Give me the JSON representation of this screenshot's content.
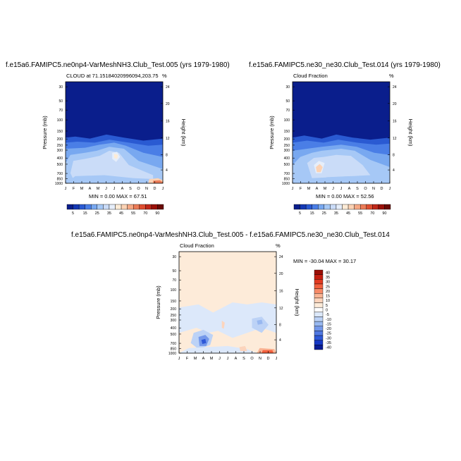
{
  "chart_data": [
    {
      "type": "heatmap",
      "title": "f.e15a6.FAMIPC5.ne0np4-VarMeshNH3.Club_Test.005 (yrs 1979-1980)",
      "left_label": "CLOUD at 71.15184020996094,203.75",
      "right_label": "%",
      "ylabel": "Pressure (mb)",
      "ylabel_right": "Height (km)",
      "x_ticks": [
        "J",
        "F",
        "M",
        "A",
        "M",
        "J",
        "J",
        "A",
        "S",
        "O",
        "N",
        "D",
        "J"
      ],
      "y_ticks": [
        "30",
        "50",
        "70",
        "100",
        "150",
        "200",
        "250",
        "300",
        "400",
        "500",
        "700",
        "850",
        "1000"
      ],
      "y_right_ticks": [
        "24",
        "20",
        "16",
        "12",
        "8",
        "4"
      ],
      "minmax": "MIN =   0.00 MAX =   67.51",
      "colorbar_labels": [
        "5",
        "15",
        "25",
        "35",
        "45",
        "55",
        "70",
        "90"
      ],
      "levels": [
        5,
        10,
        15,
        20,
        25,
        30,
        35,
        40,
        45,
        50,
        55,
        60,
        70,
        80,
        90
      ],
      "colors": [
        "#0a1e8c",
        "#1438b4",
        "#2a5ad2",
        "#4a7ee6",
        "#78a8f0",
        "#a6c8f6",
        "#cadcf8",
        "#e6eefa",
        "#fdebd6",
        "#fbd2b4",
        "#f6a884",
        "#ec7c58",
        "#de4e30",
        "#c0281a",
        "#9a1008",
        "#6a0a04"
      ],
      "contours": [
        {
          "base": "#0a1e8c",
          "value": 3
        },
        {
          "band": "upper",
          "value": 35
        },
        {
          "blob": "lower",
          "value": 45
        }
      ]
    },
    {
      "type": "heatmap",
      "title": "f.e15a6.FAMIPC5.ne30_ne30.Club_Test.014 (yrs 1979-1980)",
      "left_label": "Cloud Fraction",
      "right_label": "%",
      "ylabel": "Pressure (mb)",
      "ylabel_right": "Height (km)",
      "x_ticks": [
        "J",
        "F",
        "M",
        "A",
        "M",
        "J",
        "J",
        "A",
        "S",
        "O",
        "N",
        "D",
        "J"
      ],
      "y_ticks": [
        "30",
        "50",
        "70",
        "100",
        "150",
        "200",
        "250",
        "300",
        "400",
        "500",
        "700",
        "850",
        "1000"
      ],
      "y_right_ticks": [
        "24",
        "20",
        "16",
        "12",
        "8",
        "4"
      ],
      "minmax": "MIN =   0.00 MAX =   52.56",
      "colorbar_labels": [
        "5",
        "15",
        "25",
        "35",
        "45",
        "55",
        "70",
        "90"
      ]
    },
    {
      "type": "heatmap",
      "title": "f.e15a6.FAMIPC5.ne0np4-VarMeshNH3.Club_Test.005 - f.e15a6.FAMIPC5.ne30_ne30.Club_Test.014",
      "left_label": "Cloud Fraction",
      "right_label": "%",
      "ylabel": "Pressure (mb)",
      "ylabel_right": "Height (km)",
      "x_ticks": [
        "J",
        "F",
        "M",
        "A",
        "M",
        "J",
        "J",
        "A",
        "S",
        "O",
        "N",
        "D",
        "J"
      ],
      "y_ticks": [
        "30",
        "50",
        "70",
        "100",
        "150",
        "200",
        "250",
        "300",
        "400",
        "500",
        "700",
        "850",
        "1000"
      ],
      "y_right_ticks": [
        "24",
        "20",
        "16",
        "12",
        "8",
        "4"
      ],
      "minmax": "MIN =  -30.04 MAX =   30.17",
      "colorbar_labels": [
        "40",
        "35",
        "30",
        "25",
        "20",
        "15",
        "10",
        "5",
        "0",
        "-5",
        "-10",
        "-15",
        "-20",
        "-25",
        "-30",
        "-35",
        "-40"
      ],
      "colors": [
        "#9a0e06",
        "#c41e10",
        "#e23a22",
        "#f2603e",
        "#f78a68",
        "#fab494",
        "#fcd4bc",
        "#fdebd9",
        "#ffffff",
        "#dce8fa",
        "#bcd2f6",
        "#98b8f0",
        "#7498ea",
        "#5078e2",
        "#2e58d8",
        "#1638c4",
        "#0a1c96"
      ]
    }
  ]
}
